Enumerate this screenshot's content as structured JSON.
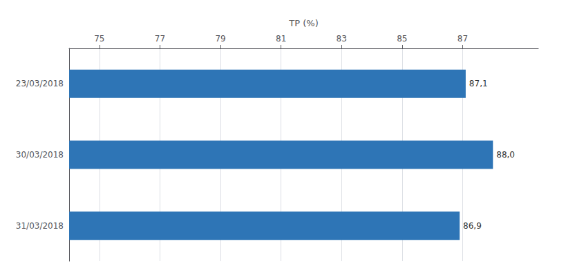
{
  "chart_data": {
    "type": "bar",
    "orientation": "horizontal",
    "xlabel": "TP (%)",
    "categories": [
      "31/03/2018",
      "30/03/2018",
      "23/03/2018"
    ],
    "values": [
      86.9,
      88.0,
      87.1
    ],
    "value_labels": [
      "86,9",
      "88,0",
      "87,1"
    ],
    "data_labels": true,
    "color": "#2E75B6",
    "xlim": [
      74.0,
      89.5
    ],
    "xticks": [
      75,
      77,
      79,
      81,
      83,
      85,
      87
    ],
    "grid": true
  }
}
